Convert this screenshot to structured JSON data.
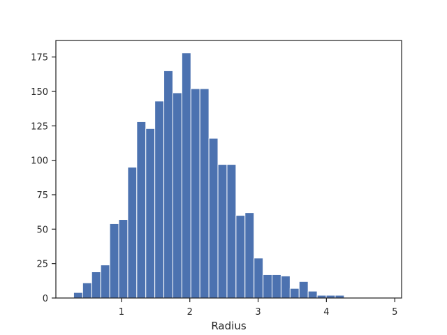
{
  "chart_data": {
    "type": "histogram",
    "xlabel": "Radius",
    "ylabel": "",
    "title": "",
    "xlim": [
      0.04,
      5.1
    ],
    "ylim": [
      0,
      187
    ],
    "x_ticks": [
      1,
      2,
      3,
      4,
      5
    ],
    "x_tick_labels": [
      "1",
      "2",
      "3",
      "4",
      "5"
    ],
    "y_ticks": [
      0,
      25,
      50,
      75,
      100,
      125,
      150,
      175
    ],
    "y_tick_labels": [
      "0",
      "25",
      "50",
      "75",
      "100",
      "125",
      "150",
      "175"
    ],
    "bin_start": 0.3,
    "bin_width": 0.132,
    "counts": [
      4,
      11,
      19,
      24,
      54,
      57,
      95,
      128,
      123,
      143,
      165,
      149,
      178,
      152,
      152,
      116,
      97,
      97,
      60,
      62,
      29,
      17,
      17,
      16,
      7,
      12,
      5,
      2,
      2,
      2,
      0,
      0,
      0,
      0,
      0,
      0,
      0
    ],
    "bar_color": "#4c72b0",
    "grid": false,
    "legend": "none"
  }
}
